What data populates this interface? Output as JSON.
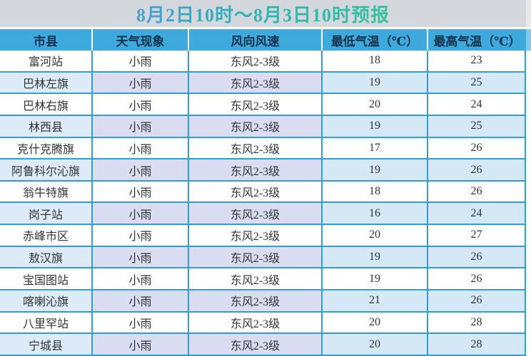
{
  "title": "8月2日10时～8月3日10时预报",
  "chart_data": {
    "type": "table",
    "title": "8月2日10时～8月3日10时预报",
    "columns": [
      "市县",
      "天气现象",
      "风向风速",
      "最低气温（℃）",
      "最高气温（℃）"
    ],
    "rows": [
      [
        "富河站",
        "小雨",
        "东风2-3级",
        "18",
        "23"
      ],
      [
        "巴林左旗",
        "小雨",
        "东风2-3级",
        "19",
        "25"
      ],
      [
        "巴林右旗",
        "小雨",
        "东风2-3级",
        "20",
        "24"
      ],
      [
        "林西县",
        "小雨",
        "东风2-3级",
        "19",
        "25"
      ],
      [
        "克什克腾旗",
        "小雨",
        "东风2-3级",
        "17",
        "26"
      ],
      [
        "阿鲁科尔沁旗",
        "小雨",
        "东风2-3级",
        "19",
        "26"
      ],
      [
        "翁牛特旗",
        "小雨",
        "东风2-3级",
        "18",
        "26"
      ],
      [
        "岗子站",
        "小雨",
        "东风2-3级",
        "16",
        "24"
      ],
      [
        "赤峰市区",
        "小雨",
        "东风2-3级",
        "20",
        "27"
      ],
      [
        "敖汉旗",
        "小雨",
        "东风2-3级",
        "19",
        "26"
      ],
      [
        "宝国图站",
        "小雨",
        "东风2-3级",
        "19",
        "26"
      ],
      [
        "喀喇沁旗",
        "小雨",
        "东风2-3级",
        "21",
        "26"
      ],
      [
        "八里罕站",
        "小雨",
        "东风2-3级",
        "20",
        "28"
      ],
      [
        "宁城县",
        "小雨",
        "东风2-3级",
        "20",
        "28"
      ]
    ]
  },
  "colors": {
    "header_bg": "#3da9dc",
    "header_text": "#15334d",
    "border": "#2d9fd4",
    "title_bg": "#d4d8dd",
    "title_text_start": "#4a9fd4",
    "title_text_end": "#38c19e",
    "alt_row_city": "#ddebf8",
    "alt_row_mid": "#dadcf1",
    "alt_row_temp": "#d5e8f6"
  }
}
